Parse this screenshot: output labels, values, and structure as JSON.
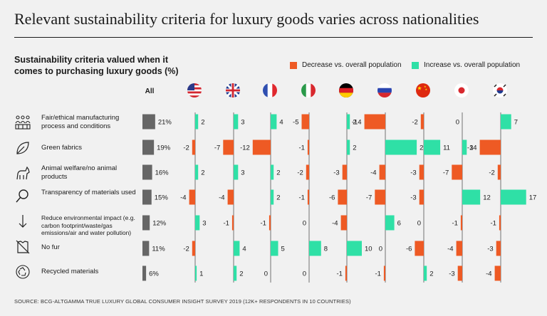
{
  "title": "Relevant sustainability criteria for luxury goods varies across nationalities",
  "subtitle": "Sustainability criteria valued when it comes to purchasing luxury goods (%)",
  "legend": {
    "decrease": "Decrease vs. overall population",
    "increase": "Increase vs. overall population"
  },
  "all_header": "All",
  "footer": "SOURCE: BCG-ALTGAMMA TRUE LUXURY GLOBAL CONSUMER INSIGHT SURVEY 2019 (12K+ RESPONDENTS IN 10 COUNTRIES)",
  "colors": {
    "decrease": "#ee5a24",
    "increase": "#2fe0a6",
    "all": "#666666"
  },
  "chart_data": {
    "type": "bar",
    "countries": [
      "United States",
      "United Kingdom",
      "France",
      "Italy",
      "Germany",
      "Russia",
      "China",
      "Japan",
      "South Korea"
    ],
    "flag_icons": [
      "us-flag-icon",
      "uk-flag-icon",
      "france-flag-icon",
      "italy-flag-icon",
      "germany-flag-icon",
      "russia-flag-icon",
      "china-flag-icon",
      "japan-flag-icon",
      "south-korea-flag-icon"
    ],
    "categories": [
      "Fair/ethical manufacturing process and conditions",
      "Green fabrics",
      "Animal welfare/no animal products",
      "Transparency of materials used",
      "Reduce environmental impact (e.g. carbon footprint/waste/gas emissions/air and water pollution)",
      "No fur",
      "Recycled materials"
    ],
    "category_icons": [
      "factory-people-icon",
      "leaf-icon",
      "animal-icon",
      "magnifier-icon",
      "down-arrow-icon",
      "no-fur-icon",
      "recycle-icon"
    ],
    "all_values": [
      21,
      19,
      16,
      15,
      12,
      11,
      6
    ],
    "all_labels": [
      "21%",
      "19%",
      "16%",
      "15%",
      "12%",
      "11%",
      "6%"
    ],
    "deltas": [
      [
        2,
        3,
        4,
        -5,
        2,
        -14,
        -2,
        0,
        7
      ],
      [
        -2,
        -7,
        -12,
        -1,
        2,
        21,
        11,
        3,
        -14
      ],
      [
        2,
        3,
        2,
        -2,
        -3,
        -4,
        -3,
        -7,
        -2
      ],
      [
        -4,
        -4,
        2,
        -1,
        -6,
        -7,
        -3,
        12,
        17
      ],
      [
        3,
        -1,
        -1,
        0,
        -4,
        6,
        0,
        -1,
        -1
      ],
      [
        -2,
        4,
        5,
        8,
        10,
        0,
        -6,
        -4,
        -3
      ],
      [
        1,
        2,
        0,
        0,
        -1,
        -1,
        2,
        -3,
        -4
      ]
    ]
  }
}
